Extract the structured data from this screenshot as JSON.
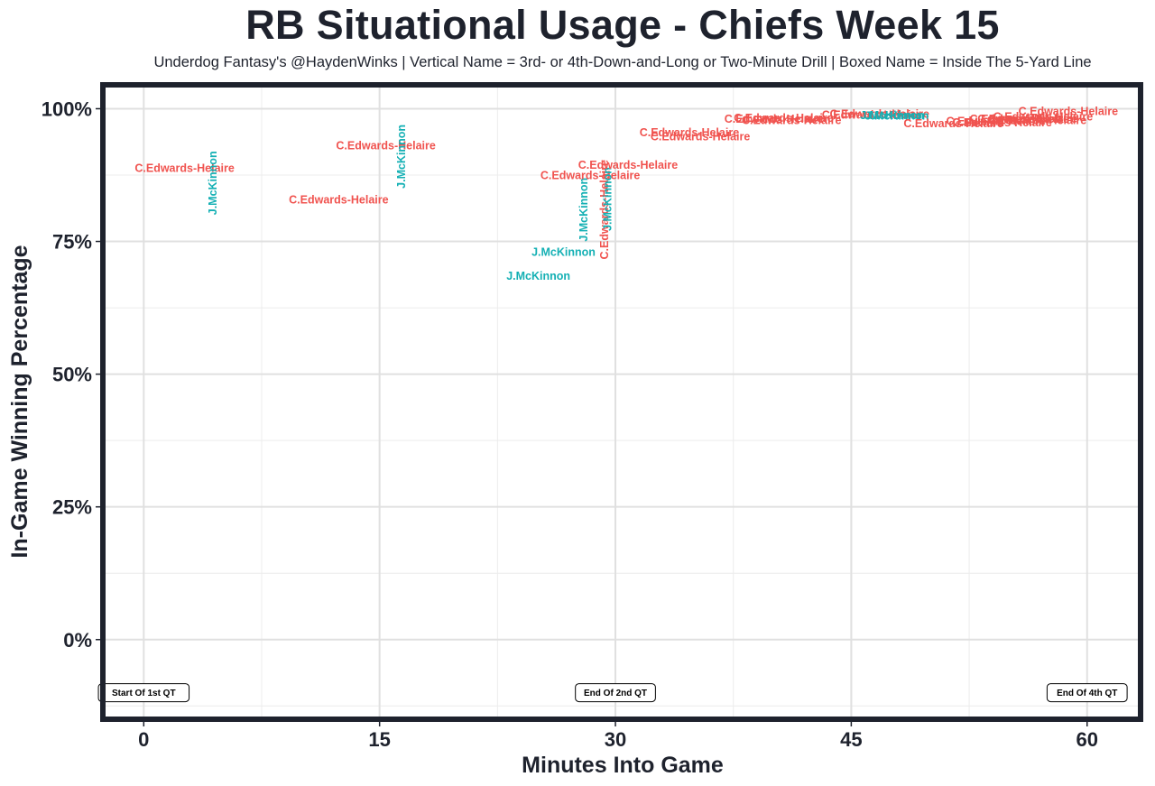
{
  "chart_data": {
    "type": "scatter",
    "title": "RB Situational Usage - Chiefs Week 15",
    "subtitle": "Underdog Fantasy's @HaydenWinks | Vertical Name = 3rd- or 4th-Down-and-Long or Two-Minute Drill | Boxed Name = Inside The 5-Yard Line",
    "xlabel": "Minutes Into Game",
    "ylabel": "In-Game Winning Percentage",
    "xlim": [
      -2.6,
      63.4
    ],
    "ylim": [
      -0.15,
      1.045
    ],
    "x_ticks": [
      {
        "value": 0,
        "label": "0"
      },
      {
        "value": 15,
        "label": "15"
      },
      {
        "value": 30,
        "label": "30"
      },
      {
        "value": 45,
        "label": "45"
      },
      {
        "value": 60,
        "label": "60"
      }
    ],
    "y_ticks": [
      {
        "value": 0,
        "label": "0%"
      },
      {
        "value": 0.25,
        "label": "25%"
      },
      {
        "value": 0.5,
        "label": "50%"
      },
      {
        "value": 0.75,
        "label": "75%"
      },
      {
        "value": 1.0,
        "label": "100%"
      }
    ],
    "grid": true,
    "legend": "none",
    "colors": {
      "C.Edwards-Helaire": "#f0534f",
      "J.McKinnon": "#14b0b4"
    },
    "points": [
      {
        "x": 2.6,
        "y": 0.888,
        "name": "C.Edwards-Helaire",
        "vertical": false
      },
      {
        "x": 4.4,
        "y": 0.86,
        "name": "J.McKinnon",
        "vertical": true
      },
      {
        "x": 12.4,
        "y": 0.828,
        "name": "C.Edwards-Helaire",
        "vertical": false
      },
      {
        "x": 15.4,
        "y": 0.93,
        "name": "C.Edwards-Helaire",
        "vertical": false
      },
      {
        "x": 16.4,
        "y": 0.91,
        "name": "J.McKinnon",
        "vertical": true
      },
      {
        "x": 25.1,
        "y": 0.685,
        "name": "J.McKinnon",
        "vertical": false
      },
      {
        "x": 26.7,
        "y": 0.73,
        "name": "J.McKinnon",
        "vertical": false
      },
      {
        "x": 28.0,
        "y": 0.81,
        "name": "J.McKinnon",
        "vertical": true
      },
      {
        "x": 28.4,
        "y": 0.874,
        "name": "C.Edwards-Helaire",
        "vertical": false
      },
      {
        "x": 29.3,
        "y": 0.81,
        "name": "C.Edwards-Helaire",
        "vertical": true
      },
      {
        "x": 29.5,
        "y": 0.83,
        "name": "J.McKinnon",
        "vertical": true
      },
      {
        "x": 30.8,
        "y": 0.894,
        "name": "C.Edwards-Helaire",
        "vertical": false
      },
      {
        "x": 34.7,
        "y": 0.955,
        "name": "C.Edwards-Helaire",
        "vertical": false
      },
      {
        "x": 35.4,
        "y": 0.947,
        "name": "C.Edwards-Helaire",
        "vertical": false
      },
      {
        "x": 40.1,
        "y": 0.98,
        "name": "C.Edwards-Helaire",
        "vertical": false
      },
      {
        "x": 40.7,
        "y": 0.982,
        "name": "C.Edwards-Helaire",
        "vertical": false
      },
      {
        "x": 41.2,
        "y": 0.978,
        "name": "C.Edwards-Helaire",
        "vertical": false
      },
      {
        "x": 46.3,
        "y": 0.988,
        "name": "C.Edwards-Helaire",
        "vertical": false
      },
      {
        "x": 46.8,
        "y": 0.99,
        "name": "C.Edwards-Helaire",
        "vertical": false
      },
      {
        "x": 47.6,
        "y": 0.987,
        "name": "J.McKinnon",
        "vertical": false
      },
      {
        "x": 47.9,
        "y": 0.986,
        "name": "J.McKinnon",
        "vertical": false
      },
      {
        "x": 51.5,
        "y": 0.972,
        "name": "C.Edwards-Helaire",
        "vertical": false
      },
      {
        "x": 54.2,
        "y": 0.976,
        "name": "C.Edwards-Helaire",
        "vertical": false
      },
      {
        "x": 54.6,
        "y": 0.974,
        "name": "C.Edwards-Helaire",
        "vertical": false
      },
      {
        "x": 55.7,
        "y": 0.98,
        "name": "C.Edwards-Helaire",
        "vertical": false
      },
      {
        "x": 56.2,
        "y": 0.98,
        "name": "C.Edwards-Helaire",
        "vertical": false
      },
      {
        "x": 56.8,
        "y": 0.978,
        "name": "C.Edwards-Helaire",
        "vertical": false
      },
      {
        "x": 57.2,
        "y": 0.985,
        "name": "C.Edwards-Helaire",
        "vertical": false
      },
      {
        "x": 58.8,
        "y": 0.995,
        "name": "C.Edwards-Helaire",
        "vertical": false
      }
    ],
    "annotations": [
      {
        "x": 0,
        "y": -0.1,
        "text": "Start Of 1st QT"
      },
      {
        "x": 30,
        "y": -0.1,
        "text": "End Of 2nd QT"
      },
      {
        "x": 60,
        "y": -0.1,
        "text": "End Of 4th QT"
      }
    ]
  }
}
